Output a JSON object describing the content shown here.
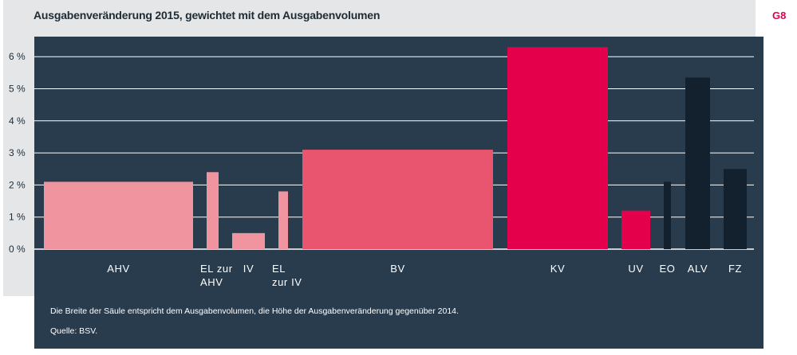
{
  "title": "Ausgabenveränderung 2015, gewichtet mit dem Ausgabenvolumen",
  "figure_label": "G8",
  "note": "Die Breite der Säule entspricht dem Ausgabenvolumen, die Höhe der Ausgabenveränderung gegenüber 2014.",
  "source": "Quelle: BSV.",
  "chart_data": {
    "type": "bar",
    "title": "Ausgabenveränderung 2015, gewichtet mit dem Ausgabenvolumen",
    "xlabel": "",
    "ylabel": "",
    "ylim": [
      0,
      6.6
    ],
    "y_ticks": [
      0,
      1,
      2,
      3,
      4,
      5,
      6
    ],
    "y_tick_labels": [
      "0 %",
      "1 %",
      "2 %",
      "3 %",
      "4 %",
      "5 %",
      "6 %"
    ],
    "grid": true,
    "bar_width_meaning": "Ausgabenvolumen",
    "categories": [
      "AHV",
      "EL zur AHV",
      "IV",
      "EL zur IV",
      "BV",
      "KV",
      "UV",
      "EO",
      "ALV",
      "FZ"
    ],
    "category_label_lines": [
      [
        "AHV"
      ],
      [
        "EL zur",
        "AHV"
      ],
      [
        "IV"
      ],
      [
        "EL",
        "zur IV"
      ],
      [
        "BV"
      ],
      [
        "KV"
      ],
      [
        "UV"
      ],
      [
        "EO"
      ],
      [
        "ALV"
      ],
      [
        "FZ"
      ]
    ],
    "values": [
      2.1,
      2.4,
      0.5,
      1.8,
      3.1,
      6.3,
      1.2,
      2.1,
      5.35,
      2.5
    ],
    "colors": [
      "#f0949f",
      "#f0949f",
      "#f0949f",
      "#f0949f",
      "#e9546e",
      "#e5004c",
      "#e5004c",
      "#13212f",
      "#13212f",
      "#13212f"
    ]
  }
}
